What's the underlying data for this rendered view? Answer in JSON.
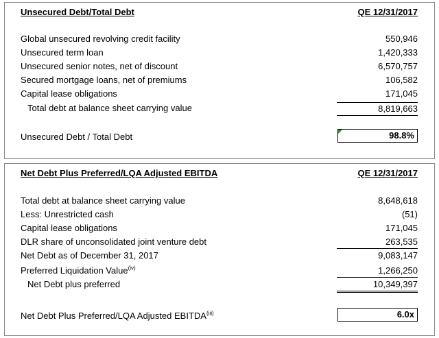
{
  "table1": {
    "title": "Unsecured Debt/Total Debt",
    "period": "QE 12/31/2017",
    "rows": [
      {
        "label": "Global unsecured revolving credit facility",
        "value": "550,946"
      },
      {
        "label": "Unsecured term loan",
        "value": "1,420,333"
      },
      {
        "label": "Unsecured senior notes, net of discount",
        "value": "6,570,757"
      },
      {
        "label": "Secured mortgage loans, net of premiums",
        "value": "106,582"
      },
      {
        "label": "Capital lease obligations",
        "value": "171,045"
      },
      {
        "label": "Total debt at balance sheet carrying value",
        "value": "8,819,663"
      }
    ],
    "ratio_label": "Unsecured Debt / Total Debt",
    "ratio_value": "98.8%"
  },
  "table2": {
    "title": "Net Debt Plus Preferred/LQA Adjusted EBITDA",
    "period": "QE 12/31/2017",
    "rows": [
      {
        "label": "Total debt at balance sheet carrying value",
        "value": "8,648,618"
      },
      {
        "label": "Less: Unrestricted cash",
        "value": "(51)"
      },
      {
        "label": "Capital lease obligations",
        "value": "171,045"
      },
      {
        "label": "DLR share of unconsolidated joint venture debt",
        "value": "263,535"
      },
      {
        "label": "Net Debt as of December 31, 2017",
        "value": "9,083,147"
      },
      {
        "label": "Preferred Liquidation Value",
        "sup": "(iv)",
        "value": "1,266,250"
      },
      {
        "label": "Net Debt plus preferred",
        "value": "10,349,397"
      }
    ],
    "ratio_label": "Net Debt Plus Preferred/LQA Adjusted EBITDA",
    "ratio_sup": "(iii)",
    "ratio_value": "6.0x"
  }
}
